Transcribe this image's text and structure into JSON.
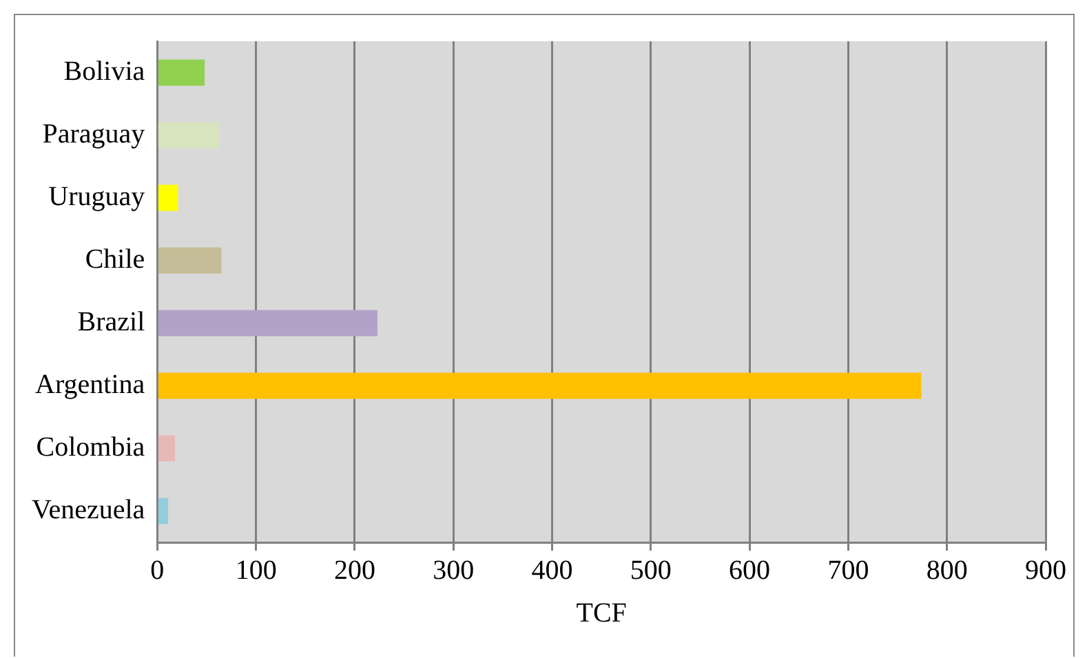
{
  "chart_data": {
    "type": "bar",
    "orientation": "horizontal",
    "xlabel": "TCF",
    "categories": [
      "Bolivia",
      "Paraguay",
      "Uruguay",
      "Chile",
      "Brazil",
      "Argentina",
      "Colombia",
      "Venezuela"
    ],
    "values": [
      48,
      63,
      21,
      65,
      223,
      774,
      18,
      11
    ],
    "colors": [
      "#92d050",
      "#d7e4bd",
      "#ffff00",
      "#c4bd97",
      "#b3a2c7",
      "#ffc000",
      "#e6b9b8",
      "#93cddd"
    ],
    "xlim": [
      0,
      900
    ],
    "xticks": [
      0,
      100,
      200,
      300,
      400,
      500,
      600,
      700,
      800,
      900
    ],
    "grid": "x",
    "legend": false
  }
}
